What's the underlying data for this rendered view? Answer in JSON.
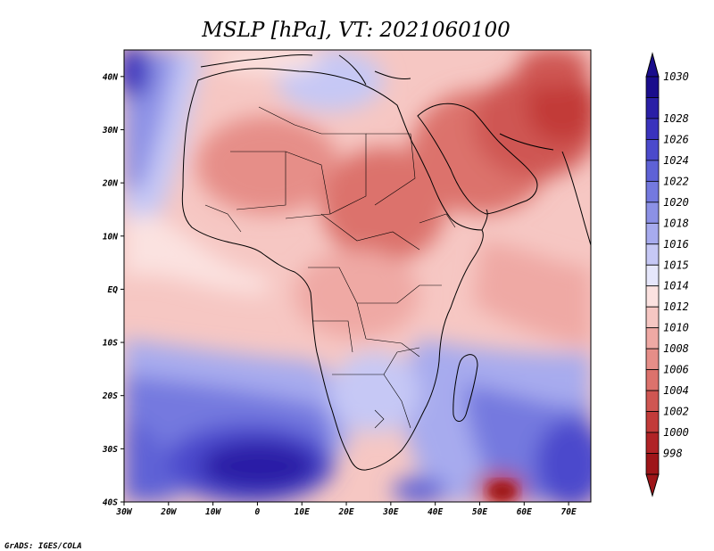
{
  "title": "MSLP [hPa], VT: 2021060100",
  "credit": "GrADS: IGES/COLA",
  "map": {
    "projection": "latlon",
    "lon_range": [
      -30,
      75
    ],
    "lat_range": [
      -40,
      45
    ],
    "field": "mean sea level pressure",
    "fill": "shaded contours",
    "coastlines": true,
    "country_borders": true
  },
  "lat_ticks": [
    {
      "label": "40N",
      "value": 40
    },
    {
      "label": "30N",
      "value": 30
    },
    {
      "label": "20N",
      "value": 20
    },
    {
      "label": "10N",
      "value": 10
    },
    {
      "label": "EQ",
      "value": 0
    },
    {
      "label": "10S",
      "value": -10
    },
    {
      "label": "20S",
      "value": -20
    },
    {
      "label": "30S",
      "value": -30
    },
    {
      "label": "40S",
      "value": -40
    }
  ],
  "lon_ticks": [
    {
      "label": "30W",
      "value": -30
    },
    {
      "label": "20W",
      "value": -20
    },
    {
      "label": "10W",
      "value": -10
    },
    {
      "label": "0",
      "value": 0
    },
    {
      "label": "10E",
      "value": 10
    },
    {
      "label": "20E",
      "value": 20
    },
    {
      "label": "30E",
      "value": 30
    },
    {
      "label": "40E",
      "value": 40
    },
    {
      "label": "50E",
      "value": 50
    },
    {
      "label": "60E",
      "value": 60
    },
    {
      "label": "70E",
      "value": 70
    }
  ],
  "colorbar": {
    "labels": [
      "1030",
      "1028",
      "1026",
      "1024",
      "1022",
      "1020",
      "1018",
      "1016",
      "1015",
      "1014",
      "1012",
      "1010",
      "1008",
      "1006",
      "1004",
      "1002",
      "1000",
      "998"
    ],
    "colors": [
      "#1a0d8c",
      "#2a1fa6",
      "#3a33bd",
      "#4b4acc",
      "#5e62d6",
      "#7479df",
      "#8c91e6",
      "#a7abee",
      "#c6c8f5",
      "#e6e7fb",
      "#fbe2e0",
      "#f6c7c3",
      "#efa9a4",
      "#e68e88",
      "#dc726c",
      "#cf5652",
      "#c23b39",
      "#b02326",
      "#9e1519"
    ],
    "triangle_top_color": "#1a0d8c",
    "triangle_bottom_color": "#9e1519"
  }
}
